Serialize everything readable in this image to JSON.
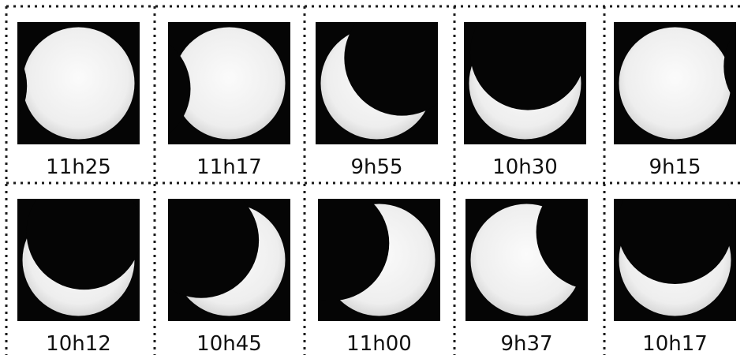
{
  "cells": [
    {
      "label": "11h25"
    },
    {
      "label": "11h17"
    },
    {
      "label": "9h55"
    },
    {
      "label": "10h30"
    },
    {
      "label": "9h15"
    },
    {
      "label": "10h12"
    },
    {
      "label": "10h45"
    },
    {
      "label": "11h00"
    },
    {
      "label": "9h37"
    },
    {
      "label": "10h17"
    }
  ]
}
